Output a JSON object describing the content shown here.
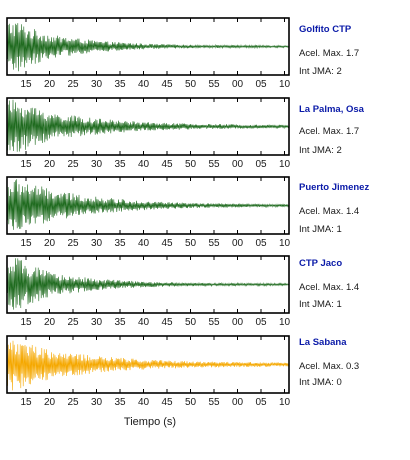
{
  "chart_data": {
    "type": "line",
    "xlabel": "Tiempo (s)",
    "x_tick_labels": [
      "15",
      "20",
      "25",
      "30",
      "35",
      "40",
      "45",
      "50",
      "55",
      "00",
      "05",
      "10"
    ],
    "panels": [
      {
        "station": "Golfito CTP",
        "accel_label": "Acel. Max. 1.7",
        "jma_label": "Int JMA: 2",
        "peak_accel": 1.7,
        "jma_intensity": 2,
        "color": "#1f6b1f",
        "trace_envelope": {
          "time_s": [
            0,
            2,
            5,
            10,
            20,
            30,
            40,
            60
          ],
          "relative_amplitude": [
            0.95,
            1.0,
            0.7,
            0.42,
            0.2,
            0.1,
            0.06,
            0.04
          ]
        }
      },
      {
        "station": "La Palma, Osa",
        "accel_label": "Acel. Max. 1.7",
        "jma_label": "Int JMA: 2",
        "peak_accel": 1.7,
        "jma_intensity": 2,
        "color": "#1f6b1f",
        "trace_envelope": {
          "time_s": [
            0,
            2,
            5,
            10,
            20,
            30,
            40,
            60
          ],
          "relative_amplitude": [
            1.0,
            1.0,
            0.8,
            0.5,
            0.28,
            0.16,
            0.1,
            0.06
          ]
        }
      },
      {
        "station": "Puerto Jimenez",
        "accel_label": "Acel. Max. 1.4",
        "jma_label": "Int JMA: 1",
        "peak_accel": 1.4,
        "jma_intensity": 1,
        "color": "#1f6b1f",
        "trace_envelope": {
          "time_s": [
            0,
            2,
            5,
            10,
            20,
            30,
            40,
            60
          ],
          "relative_amplitude": [
            0.85,
            1.0,
            0.85,
            0.55,
            0.3,
            0.16,
            0.09,
            0.05
          ]
        }
      },
      {
        "station": "CTP Jaco",
        "accel_label": "Acel. Max. 1.4",
        "jma_label": "Int JMA: 1",
        "peak_accel": 1.4,
        "jma_intensity": 1,
        "color": "#1f6b1f",
        "trace_envelope": {
          "time_s": [
            0,
            2,
            5,
            10,
            20,
            30,
            40,
            60
          ],
          "relative_amplitude": [
            0.8,
            1.0,
            0.75,
            0.4,
            0.2,
            0.1,
            0.06,
            0.04
          ]
        }
      },
      {
        "station": "La Sabana",
        "accel_label": "Acel. Max. 0.3",
        "jma_label": "Int JMA: 0",
        "peak_accel": 0.3,
        "jma_intensity": 0,
        "color": "#f5a800",
        "trace_envelope": {
          "time_s": [
            0,
            2,
            5,
            10,
            20,
            30,
            40,
            60
          ],
          "relative_amplitude": [
            1.0,
            0.95,
            0.75,
            0.5,
            0.3,
            0.18,
            0.12,
            0.08
          ]
        }
      }
    ]
  }
}
